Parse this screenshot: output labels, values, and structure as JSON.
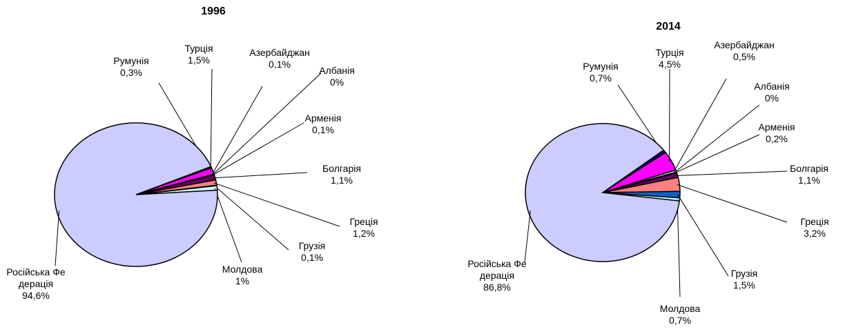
{
  "chart_data": [
    {
      "type": "pie",
      "title": "1996",
      "categories": [
        "Румунія",
        "Турція",
        "Азербайджан",
        "Албанія",
        "Арменія",
        "Болгарія",
        "Греція",
        "Грузія",
        "Молдова",
        "Російська Федерація"
      ],
      "values": [
        0.3,
        1.5,
        0.1,
        0,
        0.1,
        1.1,
        1.2,
        0.1,
        1,
        94.6
      ],
      "value_labels": [
        "0,3%",
        "1,5%",
        "0,1%",
        "0%",
        "0,1%",
        "1,1%",
        "1,2%",
        "0,1%",
        "1%",
        "94,6%"
      ],
      "colors": [
        "#000080",
        "#ff00ff",
        "#ccffff",
        "#ffffcc",
        "#ffffff",
        "#660066",
        "#ff8080",
        "#0066cc",
        "#ccffff",
        "#ccccff"
      ]
    },
    {
      "type": "pie",
      "title": "2014",
      "categories": [
        "Румунія",
        "Турція",
        "Азербайджан",
        "Албанія",
        "Арменія",
        "Болгарія",
        "Греція",
        "Грузія",
        "Молдова",
        "Російська Федерація"
      ],
      "values": [
        0.7,
        4.5,
        0.5,
        0,
        0.2,
        1.1,
        3.2,
        1.5,
        0.7,
        86.8
      ],
      "value_labels": [
        "0,7%",
        "4,5%",
        "0,5%",
        "0%",
        "0,2%",
        "1,1%",
        "3,2%",
        "1,5%",
        "0,7%",
        "86,8%"
      ],
      "colors": [
        "#000080",
        "#ff00ff",
        "#ccffff",
        "#ffffcc",
        "#ffffff",
        "#660066",
        "#ff8080",
        "#0066cc",
        "#ccffff",
        "#ccccff"
      ]
    }
  ]
}
